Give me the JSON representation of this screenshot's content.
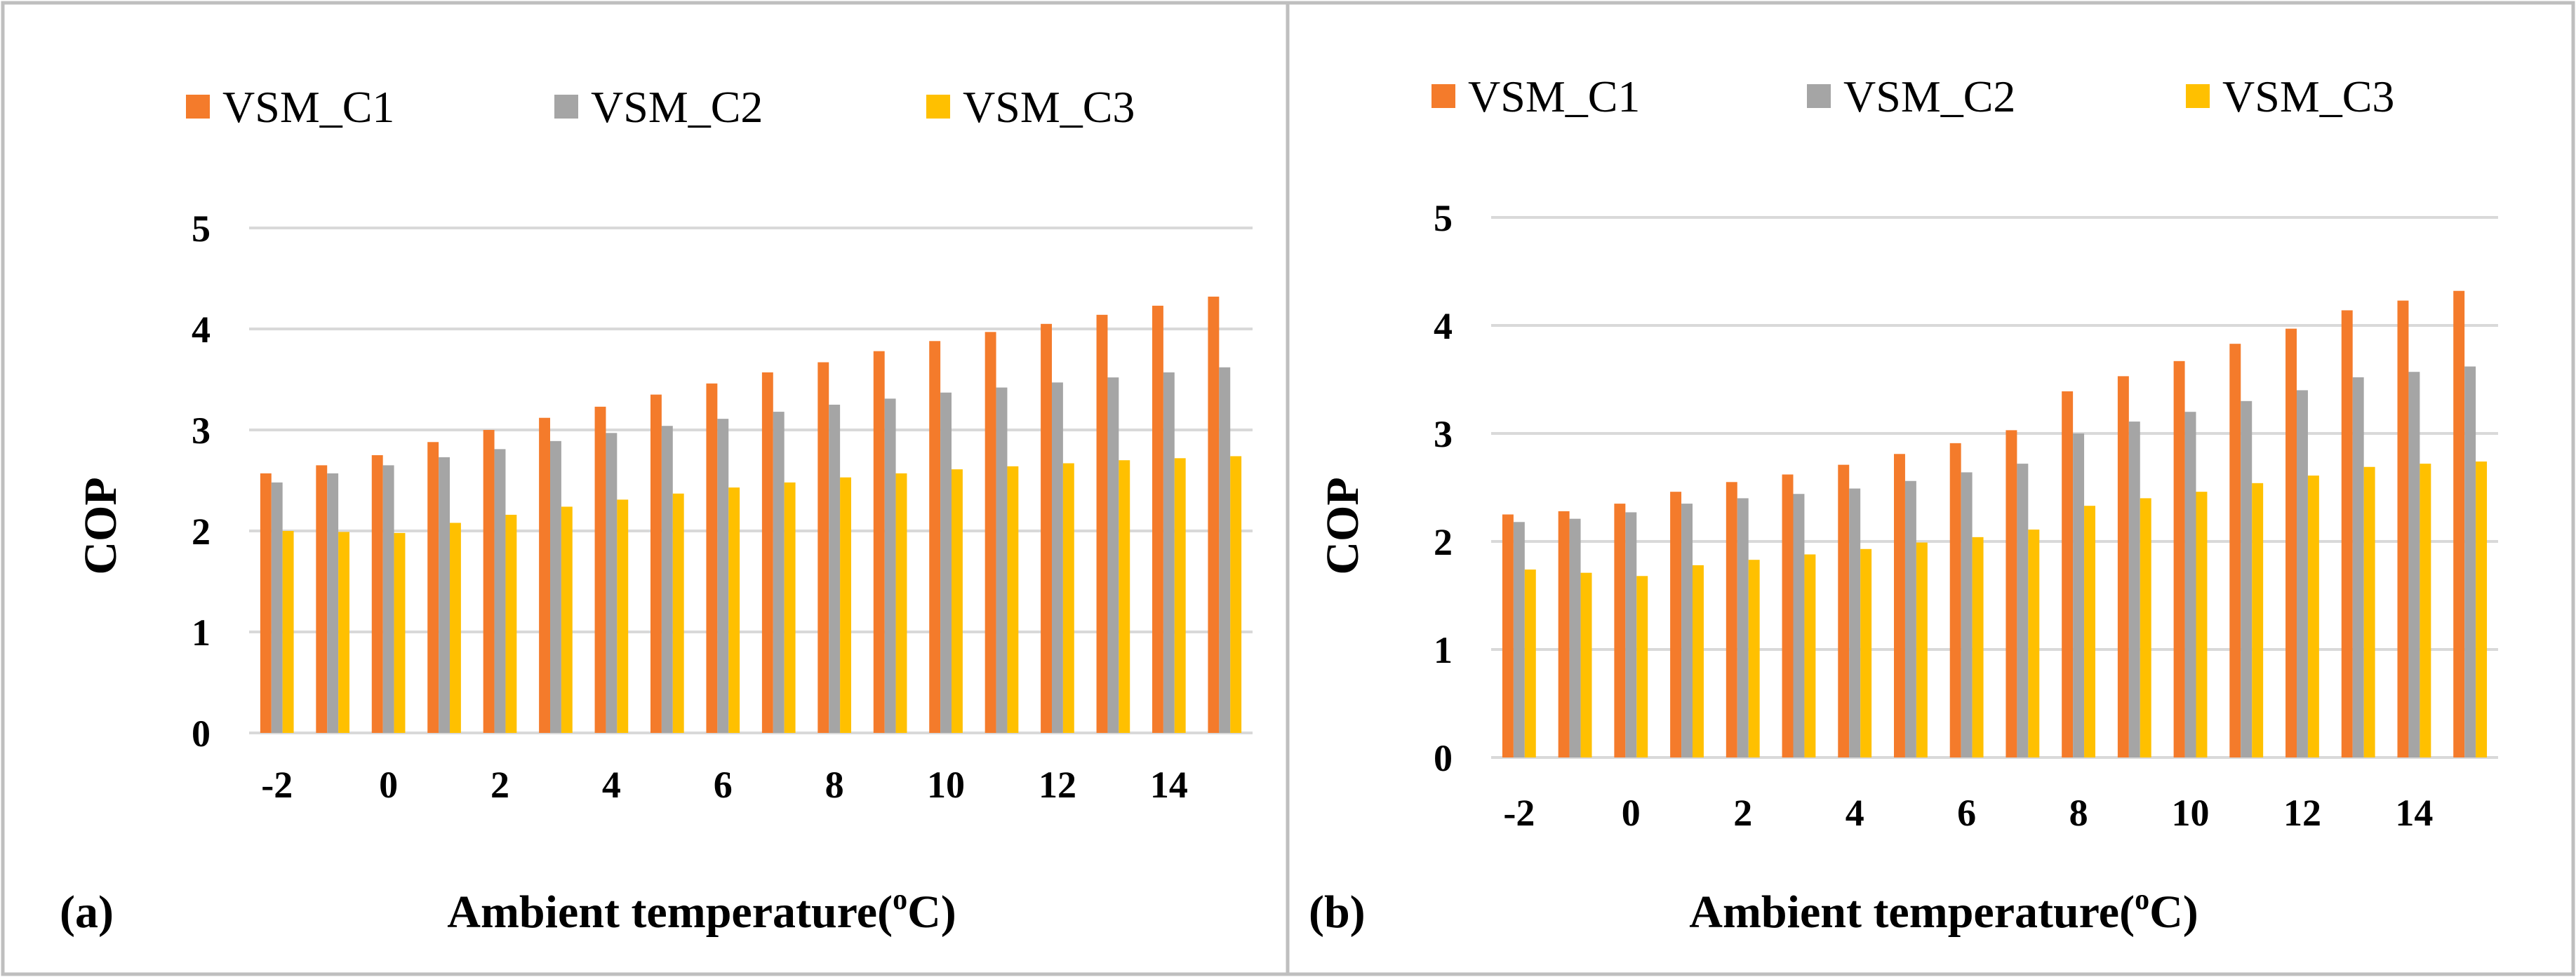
{
  "panels": [
    {
      "label": "(a)"
    },
    {
      "label": "(b)"
    }
  ],
  "colors": {
    "VSM_C1": "#F47B2B",
    "VSM_C2": "#A5A5A5",
    "VSM_C3": "#FFC000",
    "grid": "#D9D9D9",
    "border": "#BFBFBF"
  },
  "chart_data": [
    {
      "type": "bar",
      "panel": "(a)",
      "x": [
        -2,
        -1,
        0,
        1,
        2,
        3,
        4,
        5,
        6,
        7,
        8,
        9,
        10,
        11,
        12,
        13,
        14,
        15
      ],
      "xticks": [
        "-2",
        "0",
        "2",
        "4",
        "6",
        "8",
        "10",
        "12",
        "14"
      ],
      "yticks": [
        "0",
        "1",
        "2",
        "3",
        "4",
        "5"
      ],
      "xlabel_main": "Ambient temperature(",
      "xlabel_sup": "o",
      "xlabel_end": "C)",
      "ylabel": "COP",
      "ylim": [
        0,
        5
      ],
      "grid": true,
      "legend_position": "top",
      "series": [
        {
          "name": "VSM_C1",
          "values": [
            2.57,
            2.65,
            2.75,
            2.88,
            3.0,
            3.12,
            3.23,
            3.35,
            3.46,
            3.57,
            3.67,
            3.78,
            3.88,
            3.97,
            4.05,
            4.14,
            4.23,
            4.32
          ]
        },
        {
          "name": "VSM_C2",
          "values": [
            2.48,
            2.57,
            2.65,
            2.73,
            2.81,
            2.89,
            2.97,
            3.04,
            3.11,
            3.18,
            3.25,
            3.31,
            3.37,
            3.42,
            3.47,
            3.52,
            3.57,
            3.62
          ]
        },
        {
          "name": "VSM_C3",
          "values": [
            2.0,
            1.99,
            1.98,
            2.08,
            2.16,
            2.24,
            2.31,
            2.37,
            2.43,
            2.48,
            2.53,
            2.57,
            2.61,
            2.64,
            2.67,
            2.7,
            2.72,
            2.74
          ]
        }
      ]
    },
    {
      "type": "bar",
      "panel": "(b)",
      "x": [
        -2,
        -1,
        0,
        1,
        2,
        3,
        4,
        5,
        6,
        7,
        8,
        9,
        10,
        11,
        12,
        13,
        14,
        15
      ],
      "xticks": [
        "-2",
        "0",
        "2",
        "4",
        "6",
        "8",
        "10",
        "12",
        "14"
      ],
      "yticks": [
        "0",
        "1",
        "2",
        "3",
        "4",
        "5"
      ],
      "xlabel_main": "Ambient temperature(",
      "xlabel_sup": "o",
      "xlabel_end": "C)",
      "ylabel": "COP",
      "ylim": [
        0,
        5
      ],
      "grid": true,
      "legend_position": "top",
      "series": [
        {
          "name": "VSM_C1",
          "values": [
            2.25,
            2.28,
            2.35,
            2.46,
            2.55,
            2.62,
            2.71,
            2.81,
            2.91,
            3.03,
            3.39,
            3.53,
            3.67,
            3.83,
            3.97,
            4.14,
            4.23,
            4.32
          ]
        },
        {
          "name": "VSM_C2",
          "values": [
            2.18,
            2.21,
            2.27,
            2.35,
            2.4,
            2.44,
            2.49,
            2.56,
            2.64,
            2.72,
            3.0,
            3.11,
            3.2,
            3.3,
            3.4,
            3.52,
            3.57,
            3.62
          ]
        },
        {
          "name": "VSM_C3",
          "values": [
            1.74,
            1.71,
            1.68,
            1.78,
            1.83,
            1.88,
            1.93,
            1.99,
            2.04,
            2.11,
            2.33,
            2.4,
            2.46,
            2.54,
            2.61,
            2.69,
            2.72,
            2.74
          ]
        }
      ]
    }
  ]
}
